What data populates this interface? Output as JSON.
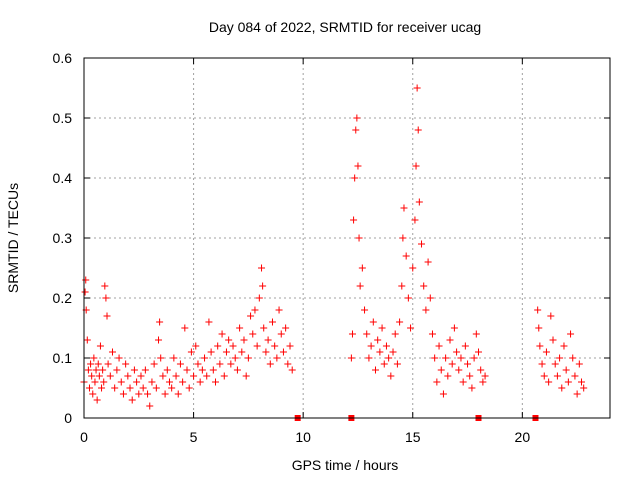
{
  "chart_data": {
    "type": "scatter",
    "title": "Day 084 of 2022, SRMTID for receiver ucag",
    "xlabel": "GPS time / hours",
    "ylabel": "SRMTID / TECUs",
    "xlim": [
      0,
      24
    ],
    "ylim": [
      0,
      0.6
    ],
    "xticks": [
      0,
      5,
      10,
      15,
      20
    ],
    "xtick_labels": [
      "0",
      "5",
      "10",
      "15",
      "20"
    ],
    "yticks": [
      0,
      0.1,
      0.2,
      0.3,
      0.4,
      0.5,
      0.6
    ],
    "ytick_labels": [
      "0",
      "0.1",
      "0.2",
      "0.3",
      "0.4",
      "0.5",
      "0.6"
    ],
    "grid": true,
    "marker": "+",
    "color": "#ff0000",
    "gap_markers": [
      9.75,
      12.2,
      18.0,
      20.6
    ],
    "series": [
      {
        "name": "SRMTID",
        "points": [
          [
            0.0,
            0.06
          ],
          [
            0.05,
            0.21
          ],
          [
            0.08,
            0.23
          ],
          [
            0.1,
            0.18
          ],
          [
            0.15,
            0.13
          ],
          [
            0.2,
            0.08
          ],
          [
            0.25,
            0.05
          ],
          [
            0.3,
            0.09
          ],
          [
            0.35,
            0.07
          ],
          [
            0.4,
            0.04
          ],
          [
            0.45,
            0.1
          ],
          [
            0.5,
            0.06
          ],
          [
            0.55,
            0.08
          ],
          [
            0.6,
            0.03
          ],
          [
            0.65,
            0.09
          ],
          [
            0.7,
            0.07
          ],
          [
            0.75,
            0.12
          ],
          [
            0.8,
            0.05
          ],
          [
            0.85,
            0.08
          ],
          [
            0.9,
            0.06
          ],
          [
            0.95,
            0.22
          ],
          [
            1.0,
            0.2
          ],
          [
            1.05,
            0.17
          ],
          [
            1.1,
            0.09
          ],
          [
            1.2,
            0.07
          ],
          [
            1.3,
            0.11
          ],
          [
            1.4,
            0.05
          ],
          [
            1.5,
            0.08
          ],
          [
            1.6,
            0.1
          ],
          [
            1.7,
            0.06
          ],
          [
            1.8,
            0.04
          ],
          [
            1.9,
            0.09
          ],
          [
            2.0,
            0.07
          ],
          [
            2.1,
            0.05
          ],
          [
            2.2,
            0.03
          ],
          [
            2.3,
            0.08
          ],
          [
            2.4,
            0.06
          ],
          [
            2.5,
            0.04
          ],
          [
            2.6,
            0.07
          ],
          [
            2.7,
            0.05
          ],
          [
            2.8,
            0.08
          ],
          [
            2.9,
            0.04
          ],
          [
            3.0,
            0.02
          ],
          [
            3.1,
            0.06
          ],
          [
            3.2,
            0.09
          ],
          [
            3.3,
            0.05
          ],
          [
            3.4,
            0.13
          ],
          [
            3.45,
            0.16
          ],
          [
            3.5,
            0.1
          ],
          [
            3.6,
            0.07
          ],
          [
            3.7,
            0.04
          ],
          [
            3.8,
            0.08
          ],
          [
            3.9,
            0.06
          ],
          [
            4.0,
            0.05
          ],
          [
            4.1,
            0.1
          ],
          [
            4.2,
            0.07
          ],
          [
            4.3,
            0.04
          ],
          [
            4.4,
            0.09
          ],
          [
            4.5,
            0.06
          ],
          [
            4.6,
            0.15
          ],
          [
            4.7,
            0.08
          ],
          [
            4.8,
            0.05
          ],
          [
            4.9,
            0.11
          ],
          [
            5.0,
            0.07
          ],
          [
            5.1,
            0.12
          ],
          [
            5.2,
            0.09
          ],
          [
            5.3,
            0.06
          ],
          [
            5.4,
            0.08
          ],
          [
            5.5,
            0.1
          ],
          [
            5.6,
            0.07
          ],
          [
            5.7,
            0.16
          ],
          [
            5.8,
            0.11
          ],
          [
            5.9,
            0.08
          ],
          [
            6.0,
            0.06
          ],
          [
            6.1,
            0.12
          ],
          [
            6.2,
            0.09
          ],
          [
            6.3,
            0.14
          ],
          [
            6.4,
            0.07
          ],
          [
            6.5,
            0.11
          ],
          [
            6.6,
            0.13
          ],
          [
            6.7,
            0.09
          ],
          [
            6.8,
            0.12
          ],
          [
            6.9,
            0.1
          ],
          [
            7.0,
            0.08
          ],
          [
            7.1,
            0.15
          ],
          [
            7.2,
            0.11
          ],
          [
            7.3,
            0.13
          ],
          [
            7.4,
            0.07
          ],
          [
            7.5,
            0.1
          ],
          [
            7.6,
            0.17
          ],
          [
            7.7,
            0.14
          ],
          [
            7.8,
            0.18
          ],
          [
            7.9,
            0.12
          ],
          [
            8.0,
            0.2
          ],
          [
            8.1,
            0.25
          ],
          [
            8.15,
            0.22
          ],
          [
            8.2,
            0.15
          ],
          [
            8.3,
            0.11
          ],
          [
            8.4,
            0.13
          ],
          [
            8.5,
            0.09
          ],
          [
            8.6,
            0.16
          ],
          [
            8.7,
            0.12
          ],
          [
            8.8,
            0.1
          ],
          [
            8.9,
            0.18
          ],
          [
            9.0,
            0.14
          ],
          [
            9.1,
            0.11
          ],
          [
            9.2,
            0.15
          ],
          [
            9.3,
            0.09
          ],
          [
            9.4,
            0.12
          ],
          [
            9.5,
            0.08
          ],
          [
            12.2,
            0.1
          ],
          [
            12.25,
            0.14
          ],
          [
            12.3,
            0.33
          ],
          [
            12.35,
            0.4
          ],
          [
            12.4,
            0.48
          ],
          [
            12.45,
            0.5
          ],
          [
            12.5,
            0.42
          ],
          [
            12.55,
            0.3
          ],
          [
            12.6,
            0.22
          ],
          [
            12.7,
            0.25
          ],
          [
            12.8,
            0.18
          ],
          [
            12.9,
            0.14
          ],
          [
            13.0,
            0.1
          ],
          [
            13.1,
            0.12
          ],
          [
            13.2,
            0.16
          ],
          [
            13.3,
            0.08
          ],
          [
            13.4,
            0.13
          ],
          [
            13.5,
            0.11
          ],
          [
            13.6,
            0.15
          ],
          [
            13.7,
            0.09
          ],
          [
            13.8,
            0.12
          ],
          [
            13.9,
            0.1
          ],
          [
            14.0,
            0.07
          ],
          [
            14.1,
            0.11
          ],
          [
            14.2,
            0.14
          ],
          [
            14.3,
            0.09
          ],
          [
            14.4,
            0.16
          ],
          [
            14.5,
            0.22
          ],
          [
            14.55,
            0.3
          ],
          [
            14.6,
            0.35
          ],
          [
            14.7,
            0.27
          ],
          [
            14.8,
            0.2
          ],
          [
            14.9,
            0.15
          ],
          [
            15.0,
            0.25
          ],
          [
            15.1,
            0.33
          ],
          [
            15.15,
            0.42
          ],
          [
            15.2,
            0.55
          ],
          [
            15.25,
            0.48
          ],
          [
            15.3,
            0.36
          ],
          [
            15.4,
            0.29
          ],
          [
            15.5,
            0.22
          ],
          [
            15.6,
            0.18
          ],
          [
            15.7,
            0.26
          ],
          [
            15.8,
            0.2
          ],
          [
            15.9,
            0.14
          ],
          [
            16.0,
            0.1
          ],
          [
            16.1,
            0.06
          ],
          [
            16.2,
            0.12
          ],
          [
            16.3,
            0.08
          ],
          [
            16.4,
            0.04
          ],
          [
            16.5,
            0.1
          ],
          [
            16.6,
            0.07
          ],
          [
            16.7,
            0.13
          ],
          [
            16.8,
            0.09
          ],
          [
            16.9,
            0.15
          ],
          [
            17.0,
            0.11
          ],
          [
            17.1,
            0.08
          ],
          [
            17.2,
            0.1
          ],
          [
            17.3,
            0.06
          ],
          [
            17.4,
            0.12
          ],
          [
            17.5,
            0.09
          ],
          [
            17.6,
            0.07
          ],
          [
            17.7,
            0.05
          ],
          [
            17.8,
            0.1
          ],
          [
            17.9,
            0.14
          ],
          [
            18.0,
            0.11
          ],
          [
            18.1,
            0.08
          ],
          [
            18.2,
            0.06
          ],
          [
            18.3,
            0.07
          ],
          [
            20.7,
            0.18
          ],
          [
            20.75,
            0.15
          ],
          [
            20.8,
            0.12
          ],
          [
            20.9,
            0.09
          ],
          [
            21.0,
            0.07
          ],
          [
            21.1,
            0.11
          ],
          [
            21.2,
            0.06
          ],
          [
            21.3,
            0.17
          ],
          [
            21.4,
            0.13
          ],
          [
            21.5,
            0.09
          ],
          [
            21.6,
            0.07
          ],
          [
            21.7,
            0.1
          ],
          [
            21.8,
            0.05
          ],
          [
            21.9,
            0.12
          ],
          [
            22.0,
            0.08
          ],
          [
            22.1,
            0.06
          ],
          [
            22.2,
            0.14
          ],
          [
            22.3,
            0.1
          ],
          [
            22.4,
            0.07
          ],
          [
            22.5,
            0.04
          ],
          [
            22.6,
            0.09
          ],
          [
            22.7,
            0.06
          ],
          [
            22.8,
            0.05
          ]
        ]
      }
    ]
  }
}
